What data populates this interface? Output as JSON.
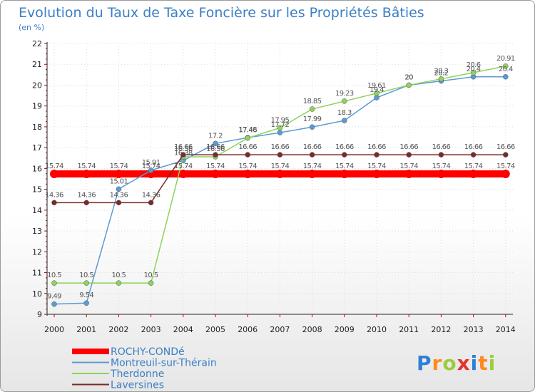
{
  "chart_data": {
    "type": "line",
    "title": "Evolution du Taux de Taxe Foncière sur les Propriétés Bâties",
    "subtitle": "(en %)",
    "xlabel": "",
    "ylabel": "",
    "x": [
      "2000",
      "2001",
      "2002",
      "2003",
      "2004",
      "2005",
      "2006",
      "2007",
      "2008",
      "2009",
      "2010",
      "2011",
      "2012",
      "2013",
      "2014"
    ],
    "ylim": [
      9,
      22
    ],
    "yticks": [
      "9",
      "10",
      "11",
      "12",
      "13",
      "14",
      "15",
      "16",
      "17",
      "18",
      "19",
      "20",
      "21",
      "22"
    ],
    "grid": true,
    "legend_position": "bottom-left",
    "series": [
      {
        "name": "ROCHY-CONDé",
        "color": "#ff0000",
        "values": [
          15.74,
          15.74,
          15.74,
          15.74,
          15.74,
          15.74,
          15.74,
          15.74,
          15.74,
          15.74,
          15.74,
          15.74,
          15.74,
          15.74,
          15.74
        ],
        "labels": [
          "15.74",
          "15.74",
          "15.74",
          "15.74",
          "15.74",
          "15.74",
          "15.74",
          "15.74",
          "15.74",
          "15.74",
          "15.74",
          "15.74",
          "15.74",
          "15.74",
          "15.74"
        ]
      },
      {
        "name": "Montreuil-sur-Thérain",
        "color": "#5b9bd5",
        "values": [
          9.49,
          9.54,
          15.01,
          15.91,
          16.38,
          17.2,
          17.48,
          17.72,
          17.99,
          18.3,
          19.4,
          20,
          20.2,
          20.4,
          20.4
        ],
        "labels": [
          "9.49",
          "9.54",
          "15.01",
          "15.91",
          "16.38",
          "17.2",
          "17.48",
          "17.72",
          "17.99",
          "18.3",
          "19.4",
          "20",
          "20.2",
          "20.4",
          "20.4"
        ]
      },
      {
        "name": "Therdonne",
        "color": "#8fd35b",
        "values": [
          10.5,
          10.5,
          10.5,
          10.5,
          16.56,
          16.56,
          17.46,
          17.95,
          18.85,
          19.23,
          19.61,
          20,
          20.3,
          20.6,
          20.91
        ],
        "labels": [
          "10.5",
          "10.5",
          "10.5",
          "10.5",
          "16.56",
          "16.56",
          "17.46",
          "17.95",
          "18.85",
          "19.23",
          "19.61",
          "20",
          "20.3",
          "20.6",
          "20.91"
        ]
      },
      {
        "name": "Laversines",
        "color": "#7b2a2a",
        "values": [
          14.36,
          14.36,
          14.36,
          14.36,
          16.66,
          16.66,
          16.66,
          16.66,
          16.66,
          16.66,
          16.66,
          16.66,
          16.66,
          16.66,
          16.66
        ],
        "labels": [
          "14.36",
          "14.36",
          "14.36",
          "14.36",
          "16.66",
          "16.66",
          "16.66",
          "16.66",
          "16.66",
          "16.66",
          "16.66",
          "16.66",
          "16.66",
          "16.66",
          "16.66"
        ]
      }
    ]
  },
  "logo": {
    "text": "Proxiti",
    "letter_colors": [
      "#2f7fd8",
      "#ff8a1c",
      "#9ccc3c",
      "#e83030",
      "#2f7fd8",
      "#ff8a1c",
      "#9ccc3c"
    ]
  }
}
